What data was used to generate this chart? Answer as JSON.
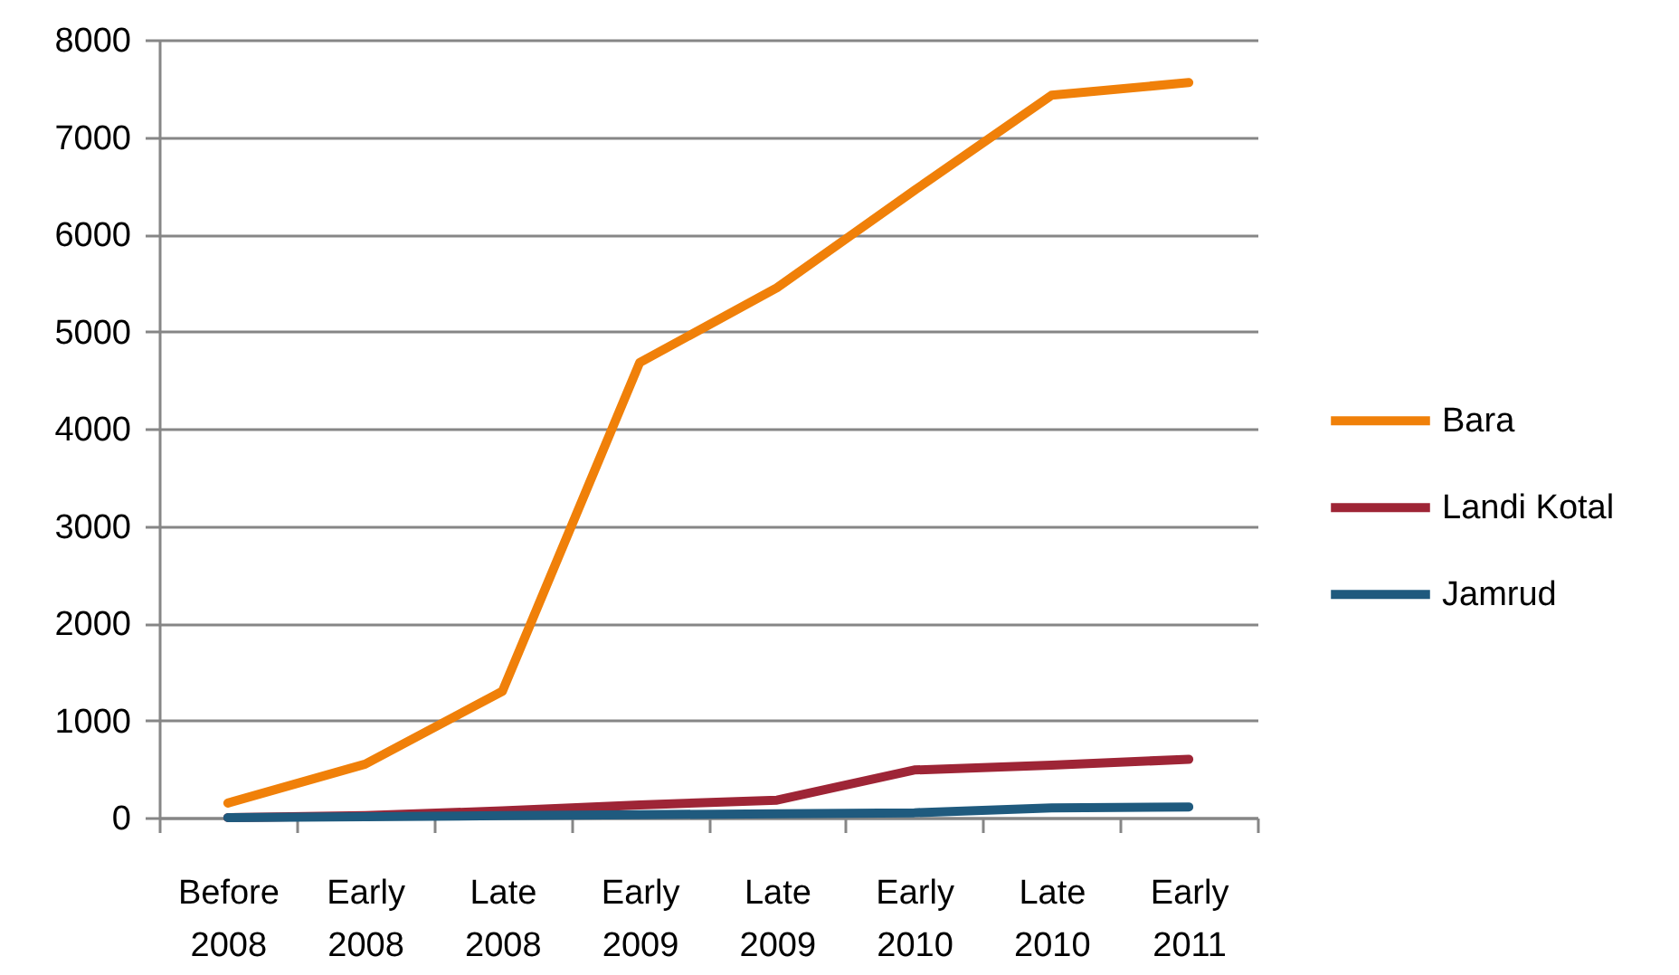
{
  "chart_data": {
    "type": "line",
    "categories": [
      "Before 2008",
      "Early 2008",
      "Late 2008",
      "Early 2009",
      "Late 2009",
      "Early 2010",
      "Late 2010",
      "Early 2011"
    ],
    "series": [
      {
        "name": "Bara",
        "color": "#f08009",
        "values": [
          150,
          550,
          1300,
          4680,
          5450,
          6450,
          7430,
          7560
        ]
      },
      {
        "name": "Landi Kotal",
        "color": "#9e2536",
        "values": [
          0,
          20,
          70,
          130,
          180,
          490,
          540,
          600
        ]
      },
      {
        "name": "Jamrud",
        "color": "#1f5a7e",
        "values": [
          0,
          10,
          20,
          30,
          40,
          50,
          100,
          110
        ]
      }
    ],
    "ylim": [
      0,
      8000
    ],
    "yticks": [
      0,
      1000,
      2000,
      3000,
      4000,
      5000,
      6000,
      7000,
      8000
    ],
    "grid": "y",
    "legend": "right"
  }
}
